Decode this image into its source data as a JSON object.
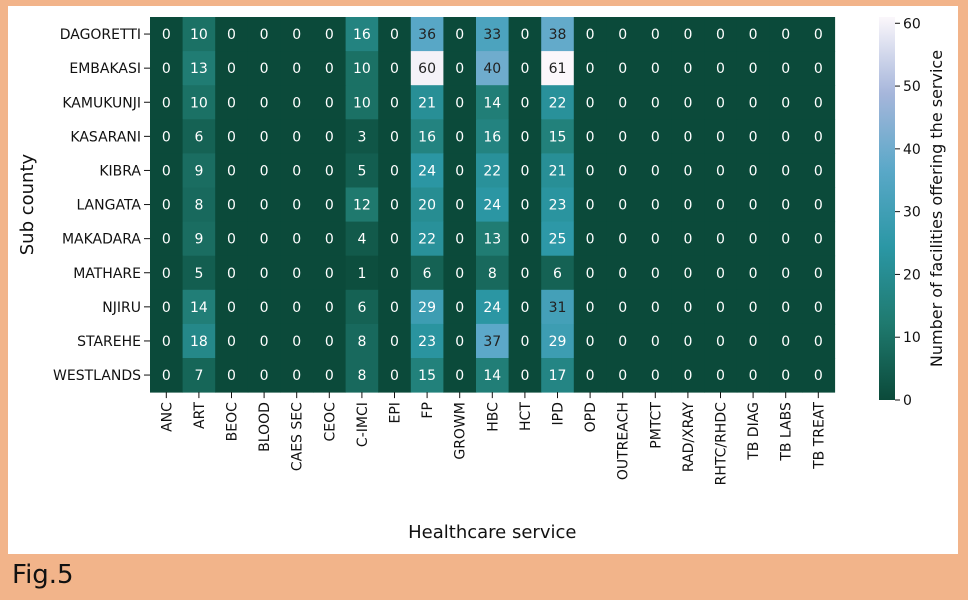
{
  "caption": "Fig.5",
  "chart_data": {
    "type": "heatmap",
    "title": "",
    "xlabel": "Healthcare service",
    "ylabel": "Sub county",
    "colorbar_label": "Number of facilities offering the service",
    "colorbar_ticks": [
      0,
      10,
      20,
      30,
      40,
      50,
      60
    ],
    "vmin": 0,
    "vmax": 61,
    "colormap": [
      "#0b4a3a",
      "#1f7a6f",
      "#2b97a5",
      "#5aa8c8",
      "#a6b6db",
      "#fbf7fb"
    ],
    "columns": [
      "ANC",
      "ART",
      "BEOC",
      "BLOOD",
      "CAES SEC",
      "CEOC",
      "C-IMCI",
      "EPI",
      "FP",
      "GROWM",
      "HBC",
      "HCT",
      "IPD",
      "OPD",
      "OUTREACH",
      "PMTCT",
      "RAD/XRAY",
      "RHTC/RHDC",
      "TB DIAG",
      "TB LABS",
      "TB TREAT"
    ],
    "rows": [
      "DAGORETTI",
      "EMBAKASI",
      "KAMUKUNJI",
      "KASARANI",
      "KIBRA",
      "LANGATA",
      "MAKADARA",
      "MATHARE",
      "NJIRU",
      "STAREHE",
      "WESTLANDS"
    ],
    "values": [
      [
        0,
        10,
        0,
        0,
        0,
        0,
        16,
        0,
        36,
        0,
        33,
        0,
        38,
        0,
        0,
        0,
        0,
        0,
        0,
        0,
        0
      ],
      [
        0,
        13,
        0,
        0,
        0,
        0,
        10,
        0,
        60,
        0,
        40,
        0,
        61,
        0,
        0,
        0,
        0,
        0,
        0,
        0,
        0
      ],
      [
        0,
        10,
        0,
        0,
        0,
        0,
        10,
        0,
        21,
        0,
        14,
        0,
        22,
        0,
        0,
        0,
        0,
        0,
        0,
        0,
        0
      ],
      [
        0,
        6,
        0,
        0,
        0,
        0,
        3,
        0,
        16,
        0,
        16,
        0,
        15,
        0,
        0,
        0,
        0,
        0,
        0,
        0,
        0
      ],
      [
        0,
        9,
        0,
        0,
        0,
        0,
        5,
        0,
        24,
        0,
        22,
        0,
        21,
        0,
        0,
        0,
        0,
        0,
        0,
        0,
        0
      ],
      [
        0,
        8,
        0,
        0,
        0,
        0,
        12,
        0,
        20,
        0,
        24,
        0,
        23,
        0,
        0,
        0,
        0,
        0,
        0,
        0,
        0
      ],
      [
        0,
        9,
        0,
        0,
        0,
        0,
        4,
        0,
        22,
        0,
        13,
        0,
        25,
        0,
        0,
        0,
        0,
        0,
        0,
        0,
        0
      ],
      [
        0,
        5,
        0,
        0,
        0,
        0,
        1,
        0,
        6,
        0,
        8,
        0,
        6,
        0,
        0,
        0,
        0,
        0,
        0,
        0,
        0
      ],
      [
        0,
        14,
        0,
        0,
        0,
        0,
        6,
        0,
        29,
        0,
        24,
        0,
        31,
        0,
        0,
        0,
        0,
        0,
        0,
        0,
        0
      ],
      [
        0,
        18,
        0,
        0,
        0,
        0,
        8,
        0,
        23,
        0,
        37,
        0,
        29,
        0,
        0,
        0,
        0,
        0,
        0,
        0,
        0
      ],
      [
        0,
        7,
        0,
        0,
        0,
        0,
        8,
        0,
        15,
        0,
        14,
        0,
        17,
        0,
        0,
        0,
        0,
        0,
        0,
        0,
        0
      ]
    ]
  }
}
